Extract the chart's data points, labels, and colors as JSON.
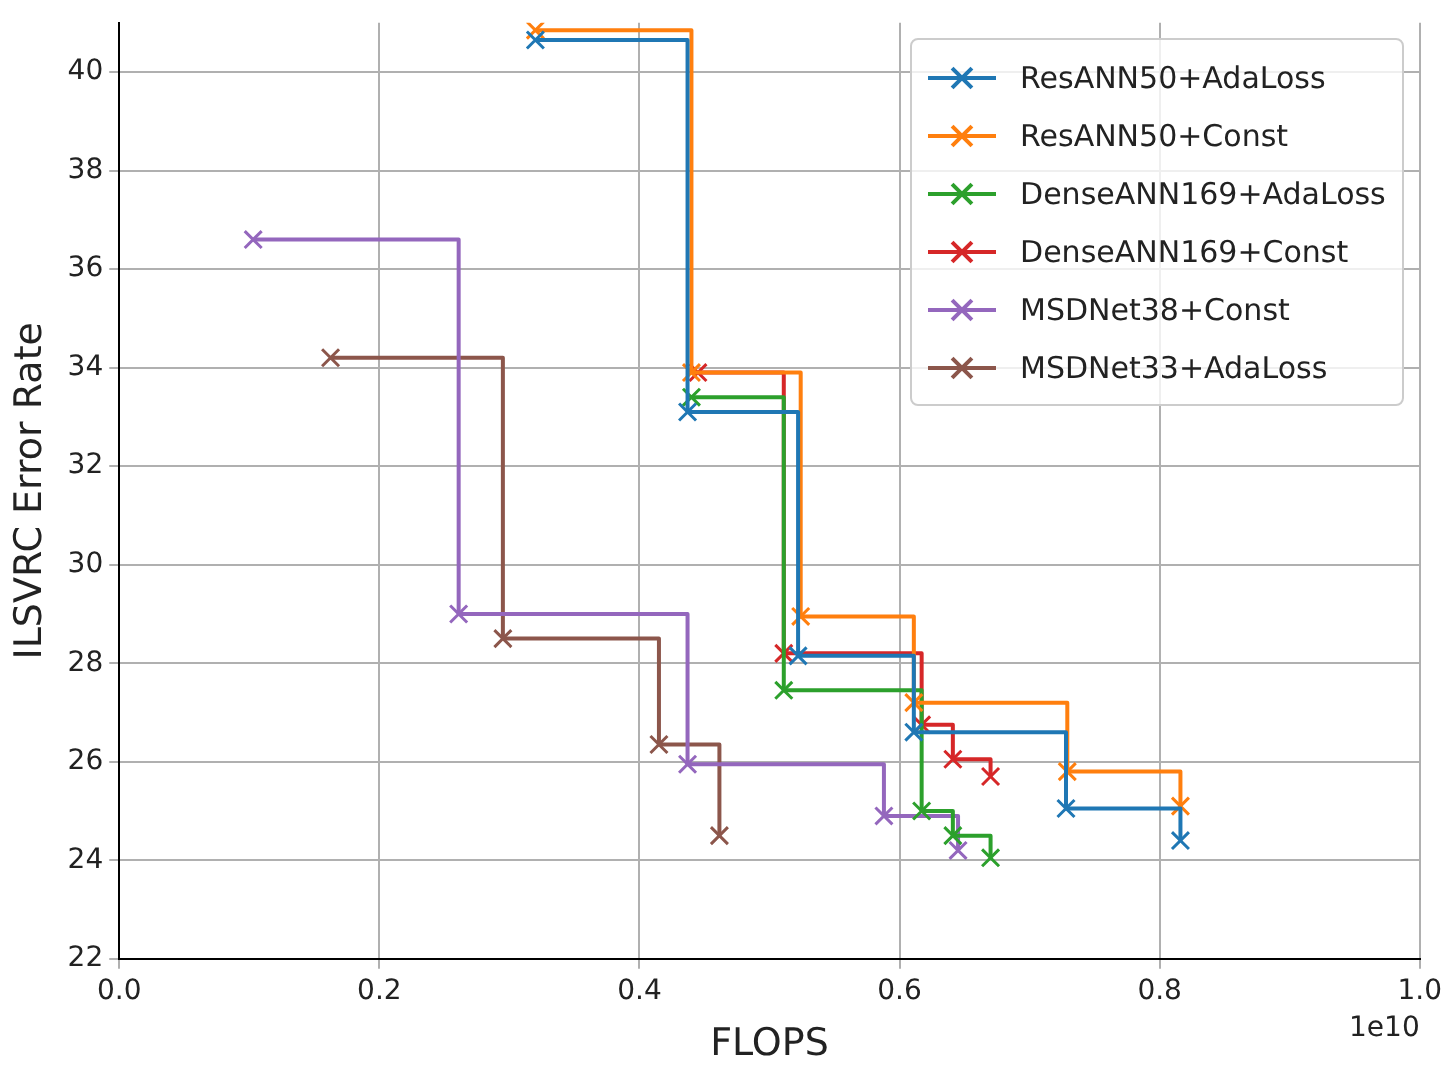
{
  "chart_data": {
    "type": "step",
    "xlabel": "FLOPS",
    "ylabel": "ILSVRC Error Rate",
    "annotations": [
      "1e10"
    ],
    "xlim": [
      0,
      1.0
    ],
    "xticks": [
      {
        "value": 0,
        "label": "0.0"
      },
      0.2,
      0.4,
      0.6,
      0.8,
      {
        "value": 1.0,
        "label": "1.0"
      }
    ],
    "ylim": [
      22,
      41
    ],
    "yticks": [
      22,
      24,
      26,
      28,
      30,
      32,
      34,
      36,
      38,
      40
    ],
    "grid": true,
    "legend": "top right",
    "marker": "cross",
    "line_style": "solid",
    "series": [
      {
        "name": "ResANN50+AdaLoss",
        "color": "#1f77b4",
        "x": [
          0.32,
          0.437,
          0.522,
          0.611,
          0.728,
          0.816
        ],
        "values": [
          40.65,
          33.1,
          28.15,
          26.6,
          25.05,
          24.4
        ]
      },
      {
        "name": "ResANN50+Const",
        "color": "#ff7f0e",
        "x": [
          0.32,
          0.44,
          0.524,
          0.611,
          0.729,
          0.816
        ],
        "values": [
          40.85,
          33.9,
          28.95,
          27.2,
          25.8,
          25.1
        ]
      },
      {
        "name": "DenseANN169+AdaLoss",
        "color": "#2ca02c",
        "x": [
          0.44,
          0.511,
          0.617,
          0.641,
          0.67
        ],
        "values": [
          33.4,
          27.45,
          25.0,
          24.5,
          24.05
        ]
      },
      {
        "name": "DenseANN169+Const",
        "color": "#d62728",
        "x": [
          0.445,
          0.511,
          0.617,
          0.641,
          0.67
        ],
        "values": [
          33.9,
          28.2,
          26.75,
          26.05,
          25.7
        ]
      },
      {
        "name": "MSDNet38+Const",
        "color": "#9467bd",
        "x": [
          0.103,
          0.261,
          0.437,
          0.588,
          0.645
        ],
        "values": [
          36.6,
          29.0,
          25.95,
          24.9,
          24.2
        ]
      },
      {
        "name": "MSDNet33+AdaLoss",
        "color": "#8c564b",
        "x": [
          0.1625,
          0.295,
          0.415,
          0.4615
        ],
        "values": [
          34.2,
          28.5,
          26.35,
          24.5
        ]
      }
    ]
  }
}
